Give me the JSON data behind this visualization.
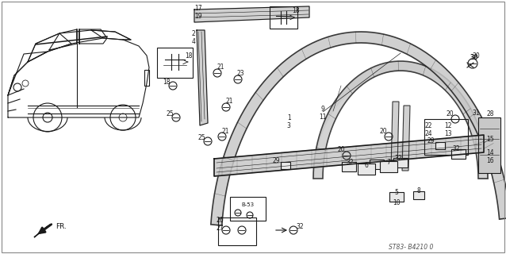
{
  "background_color": "#ffffff",
  "diagram_code": "ST83- B4210 0",
  "fig_width": 6.38,
  "fig_height": 3.2,
  "dpi": 100,
  "line_color": "#1a1a1a",
  "gray_fill": "#c8c8c8",
  "label_fontsize": 5.5,
  "bold_label_fontsize": 6.5
}
